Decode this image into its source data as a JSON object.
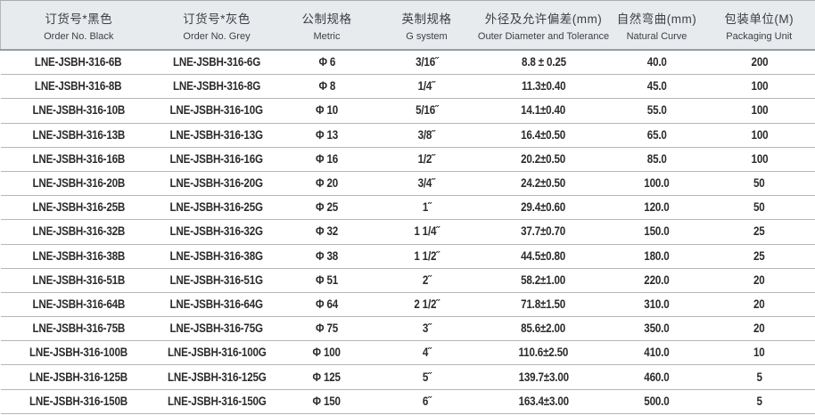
{
  "table": {
    "columns": [
      {
        "zh": "订货号*黑色",
        "en": "Order No. Black"
      },
      {
        "zh": "订货号*灰色",
        "en": "Order No. Grey"
      },
      {
        "zh": "公制规格",
        "en": "Metric"
      },
      {
        "zh": "英制规格",
        "en": "G system"
      },
      {
        "zh": "外径及允许偏差(mm)",
        "en": "Outer Diameter and Tolerance"
      },
      {
        "zh": "自然弯曲(mm)",
        "en": "Natural Curve"
      },
      {
        "zh": "包装单位(M)",
        "en": "Packaging Unit"
      }
    ],
    "rows": [
      [
        "LNE-JSBH-316-6B",
        "LNE-JSBH-316-6G",
        "Φ 6",
        "3/16˝",
        "8.8 ± 0.25",
        "40.0",
        "200"
      ],
      [
        "LNE-JSBH-316-8B",
        "LNE-JSBH-316-8G",
        "Φ 8",
        "1/4˝",
        "11.3±0.40",
        "45.0",
        "100"
      ],
      [
        "LNE-JSBH-316-10B",
        "LNE-JSBH-316-10G",
        "Φ 10",
        "5/16˝",
        "14.1±0.40",
        "55.0",
        "100"
      ],
      [
        "LNE-JSBH-316-13B",
        "LNE-JSBH-316-13G",
        "Φ 13",
        "3/8˝",
        "16.4±0.50",
        "65.0",
        "100"
      ],
      [
        "LNE-JSBH-316-16B",
        "LNE-JSBH-316-16G",
        "Φ 16",
        "1/2˝",
        "20.2±0.50",
        "85.0",
        "100"
      ],
      [
        "LNE-JSBH-316-20B",
        "LNE-JSBH-316-20G",
        "Φ 20",
        "3/4˝",
        "24.2±0.50",
        "100.0",
        "50"
      ],
      [
        "LNE-JSBH-316-25B",
        "LNE-JSBH-316-25G",
        "Φ 25",
        "1˝",
        "29.4±0.60",
        "120.0",
        "50"
      ],
      [
        "LNE-JSBH-316-32B",
        "LNE-JSBH-316-32G",
        "Φ 32",
        "1 1/4˝",
        "37.7±0.70",
        "150.0",
        "25"
      ],
      [
        "LNE-JSBH-316-38B",
        "LNE-JSBH-316-38G",
        "Φ 38",
        "1 1/2˝",
        "44.5±0.80",
        "180.0",
        "25"
      ],
      [
        "LNE-JSBH-316-51B",
        "LNE-JSBH-316-51G",
        "Φ 51",
        "2˝",
        "58.2±1.00",
        "220.0",
        "20"
      ],
      [
        "LNE-JSBH-316-64B",
        "LNE-JSBH-316-64G",
        "Φ 64",
        "2 1/2˝",
        "71.8±1.50",
        "310.0",
        "20"
      ],
      [
        "LNE-JSBH-316-75B",
        "LNE-JSBH-316-75G",
        "Φ 75",
        "3˝",
        "85.6±2.00",
        "350.0",
        "20"
      ],
      [
        "LNE-JSBH-316-100B",
        "LNE-JSBH-316-100G",
        "Φ 100",
        "4˝",
        "110.6±2.50",
        "410.0",
        "10"
      ],
      [
        "LNE-JSBH-316-125B",
        "LNE-JSBH-316-125G",
        "Φ 125",
        "5˝",
        "139.7±3.00",
        "460.0",
        "5"
      ],
      [
        "LNE-JSBH-316-150B",
        "LNE-JSBH-316-150G",
        "Φ 150",
        "6˝",
        "163.4±3.00",
        "500.0",
        "5"
      ]
    ]
  },
  "colors": {
    "header_bg": "#e8ebee",
    "header_border": "#989da2",
    "row_line": "#b4b7ba",
    "text": "#2b2b2b"
  }
}
